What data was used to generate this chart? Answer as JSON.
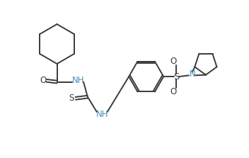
{
  "bg_color": "#ffffff",
  "line_color": "#3a3a3a",
  "text_color": "#3a3a3a",
  "n_color": "#4a8fb5",
  "line_width": 1.4,
  "font_size": 8.5,
  "xlim": [
    0,
    10
  ],
  "ylim": [
    0,
    6.5
  ]
}
